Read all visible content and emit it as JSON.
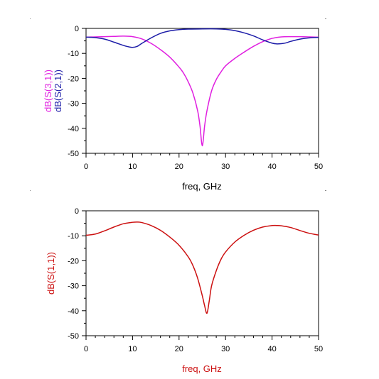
{
  "chart_data": [
    {
      "type": "line",
      "xlabel": "freq, GHz",
      "ylabels": [
        "dB(S(3,1))",
        "dB(S(2,1))"
      ],
      "xlim": [
        0,
        50
      ],
      "ylim": [
        -50,
        0
      ],
      "xticks": [
        "0",
        "10",
        "20",
        "30",
        "40",
        "50"
      ],
      "yticks": [
        "0",
        "-10",
        "-20",
        "-30",
        "-40",
        "-50"
      ],
      "grid": false,
      "series": [
        {
          "name": "dB(S(3,1))",
          "color": "#e020e0",
          "x": [
            0,
            2,
            4,
            6,
            8,
            10,
            12,
            14,
            16,
            18,
            20,
            21,
            22,
            23,
            24,
            24.5,
            25,
            25.5,
            26,
            27,
            28,
            29,
            30,
            32,
            34,
            36,
            38,
            40,
            42,
            44,
            46,
            48,
            50
          ],
          "y": [
            -3.5,
            -3.4,
            -3.3,
            -3.2,
            -3.1,
            -3.3,
            -4.2,
            -6.0,
            -8.5,
            -11.5,
            -15.5,
            -18,
            -21.5,
            -26,
            -33,
            -39,
            -47,
            -39,
            -33,
            -25,
            -20.5,
            -17.5,
            -15,
            -12,
            -9.5,
            -7.2,
            -5.3,
            -4.0,
            -3.4,
            -3.3,
            -3.3,
            -3.4,
            -3.5
          ]
        },
        {
          "name": "dB(S(2,1))",
          "color": "#1c1ca8",
          "x": [
            0,
            2,
            4,
            6,
            8,
            9,
            10,
            11,
            12,
            14,
            16,
            18,
            20,
            22,
            25,
            28,
            30,
            32,
            34,
            36,
            38,
            40,
            41,
            42,
            43,
            44,
            46,
            48,
            50
          ],
          "y": [
            -3.5,
            -3.7,
            -4.3,
            -5.5,
            -6.8,
            -7.3,
            -7.6,
            -7.2,
            -6.0,
            -3.8,
            -2.0,
            -1.0,
            -0.5,
            -0.3,
            -0.2,
            -0.2,
            -0.4,
            -0.9,
            -1.8,
            -3.0,
            -4.6,
            -5.9,
            -6.2,
            -6.1,
            -5.8,
            -5.2,
            -4.3,
            -3.8,
            -3.6
          ]
        }
      ]
    },
    {
      "type": "line",
      "xlabel": "freq, GHz",
      "ylabels": [
        "dB(S(1,1))"
      ],
      "xlim": [
        0,
        50
      ],
      "ylim": [
        -50,
        0
      ],
      "xticks": [
        "0",
        "10",
        "20",
        "30",
        "40",
        "50"
      ],
      "yticks": [
        "0",
        "-10",
        "-20",
        "-30",
        "-40",
        "-50"
      ],
      "grid": false,
      "series": [
        {
          "name": "dB(S(1,1))",
          "color": "#cc1010",
          "x": [
            0,
            2,
            4,
            6,
            8,
            10,
            11,
            12,
            14,
            16,
            18,
            20,
            22,
            23,
            24,
            25,
            25.5,
            26,
            26.5,
            27,
            28,
            29,
            30,
            32,
            34,
            36,
            38,
            40,
            41,
            42,
            44,
            46,
            48,
            50
          ],
          "y": [
            -9.8,
            -9.3,
            -8.0,
            -6.5,
            -5.2,
            -4.6,
            -4.5,
            -4.7,
            -5.9,
            -7.8,
            -10.5,
            -13.8,
            -18.5,
            -22,
            -27,
            -34,
            -38,
            -41,
            -36,
            -30,
            -24,
            -19.5,
            -16.5,
            -12.5,
            -9.8,
            -7.8,
            -6.5,
            -5.9,
            -5.9,
            -6.0,
            -6.7,
            -7.9,
            -9.0,
            -9.7
          ]
        }
      ]
    }
  ]
}
